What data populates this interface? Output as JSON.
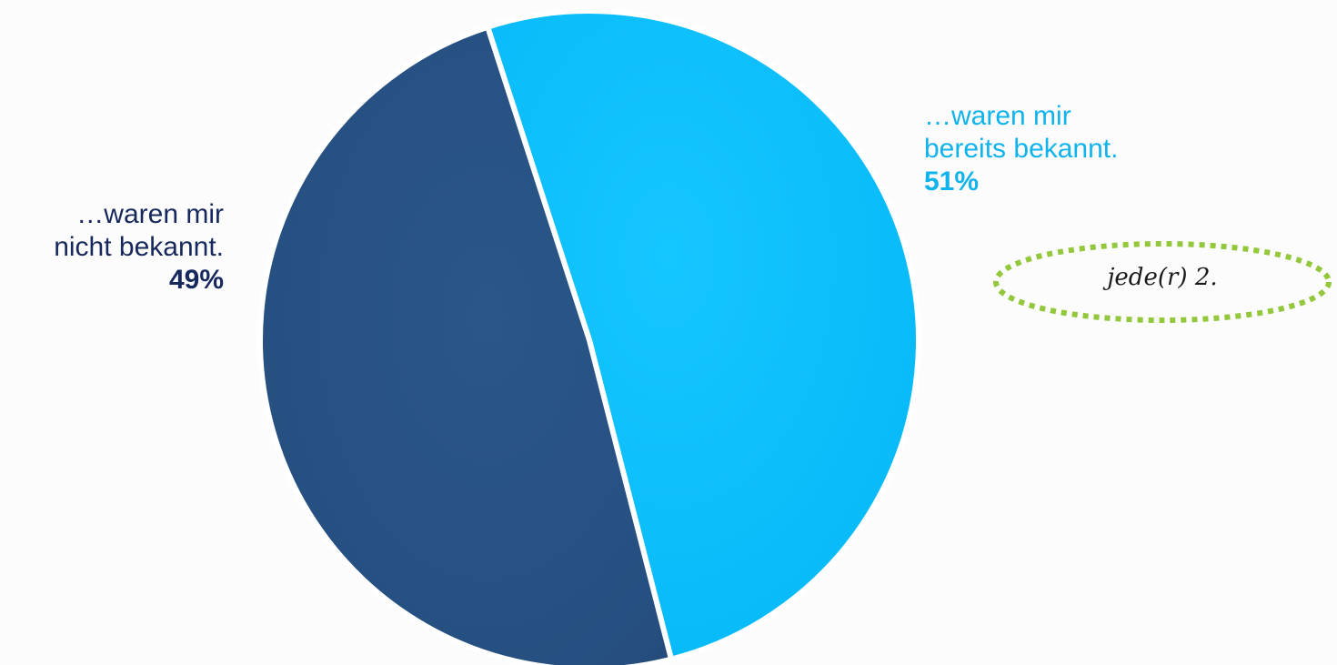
{
  "chart_data": {
    "type": "pie",
    "slices": [
      {
        "label_lines": [
          "…waren mir",
          "bereits bekannt."
        ],
        "value": 51,
        "value_label": "51%",
        "color": "#09bdfb"
      },
      {
        "label_lines": [
          "…waren mir",
          "nicht bekannt."
        ],
        "value": 49,
        "value_label": "49%",
        "color": "#264f80"
      }
    ],
    "annotation": {
      "text": "jede(r) 2.",
      "border_color": "#93c73c"
    }
  }
}
